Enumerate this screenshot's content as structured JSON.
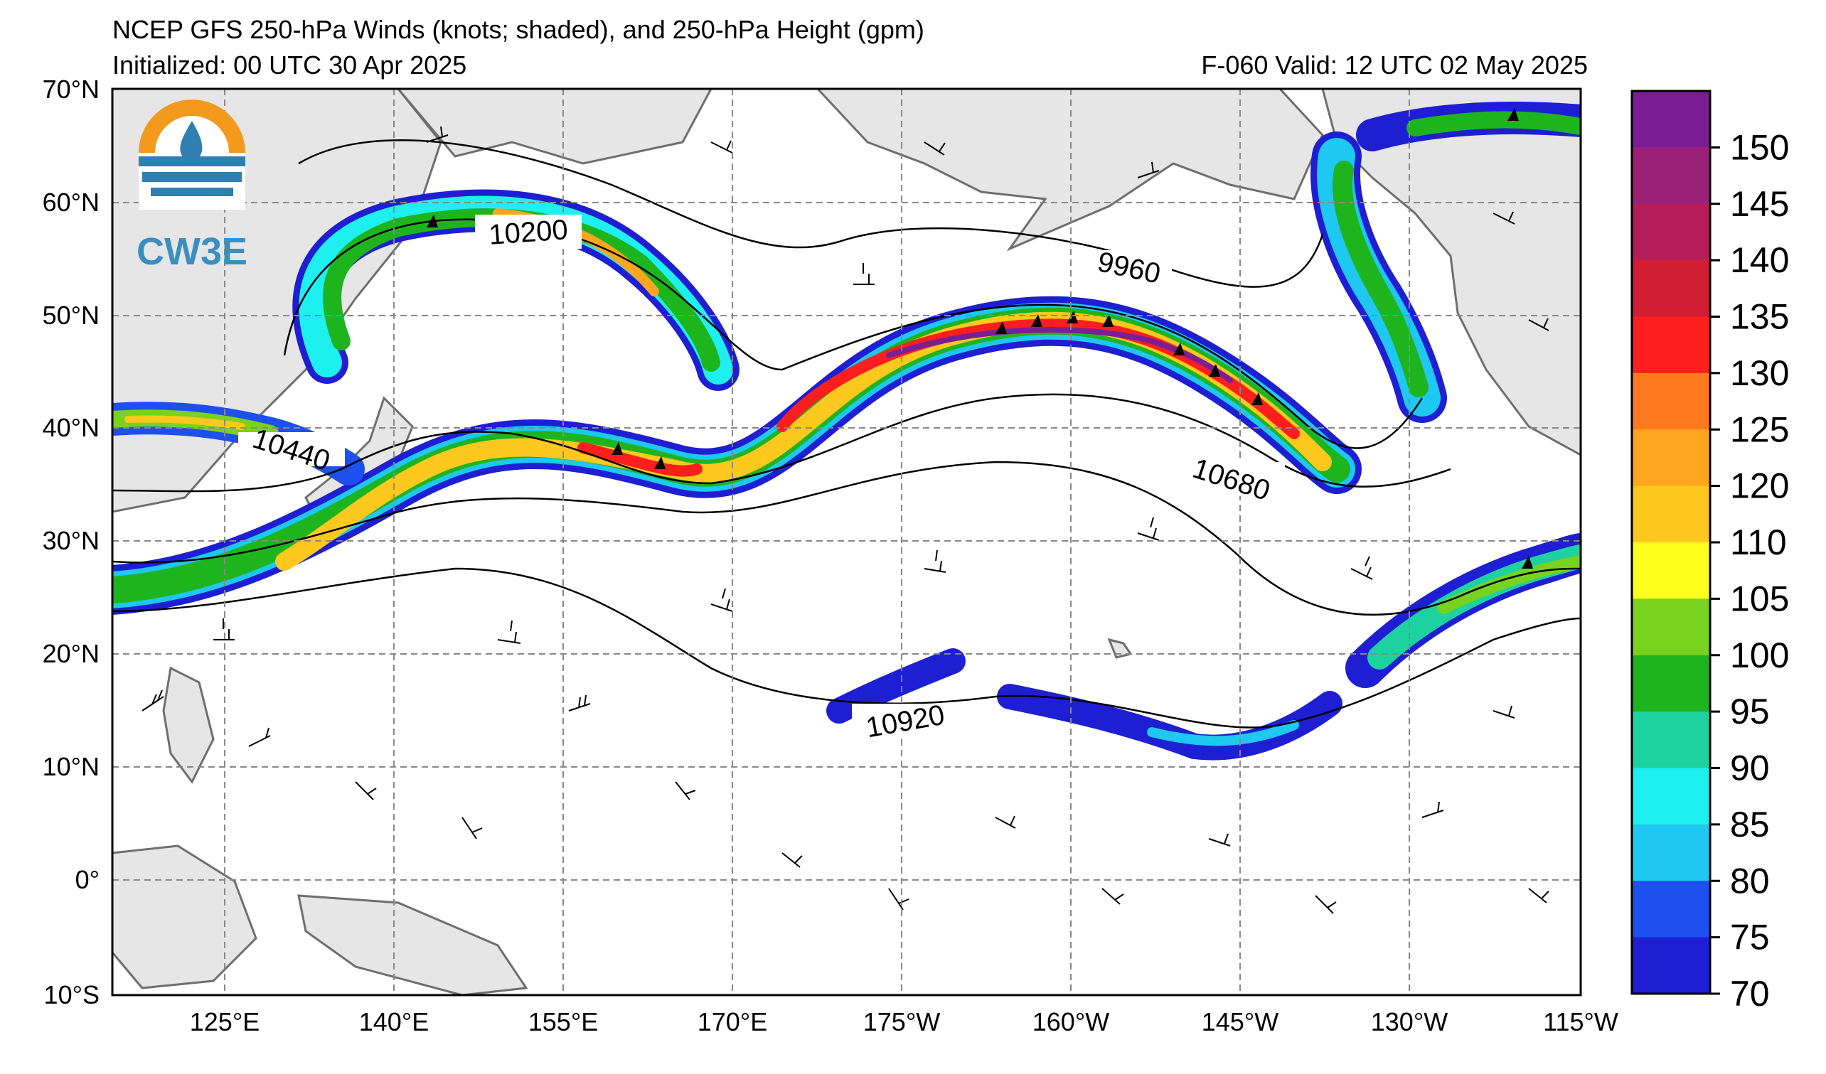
{
  "header": {
    "title": "NCEP GFS 250-hPa Winds (knots; shaded), and 250-hPa Height (gpm)",
    "initialized": "Initialized: 00 UTC 30 Apr 2025",
    "valid": "F-060  Valid: 12 UTC 02 May 2025"
  },
  "logo": {
    "text": "CW3E",
    "icon": "water-drop-sun-icon"
  },
  "map": {
    "lat_labels": [
      "70°N",
      "60°N",
      "50°N",
      "40°N",
      "30°N",
      "20°N",
      "10°N",
      "0°",
      "10°S"
    ],
    "lon_labels": [
      "125°E",
      "140°E",
      "155°E",
      "170°E",
      "175°W",
      "160°W",
      "145°W",
      "130°W",
      "115°W"
    ],
    "contour_labels": [
      "10200",
      "9960",
      "10440",
      "10680",
      "10920"
    ]
  },
  "colorbar": {
    "labels": [
      "150",
      "145",
      "140",
      "135",
      "130",
      "125",
      "120",
      "110",
      "105",
      "100",
      "95",
      "90",
      "85",
      "80",
      "75",
      "70"
    ],
    "colors": [
      "#7a1e96",
      "#9a2078",
      "#b41c5a",
      "#d21e32",
      "#ff1e1e",
      "#ff7a1e",
      "#ffa51e",
      "#ffc81e",
      "#ffff1e",
      "#78d21e",
      "#1eb41e",
      "#1ed2a0",
      "#1ef0f0",
      "#1ec8f0",
      "#1e50f0",
      "#1e1ed2"
    ]
  }
}
